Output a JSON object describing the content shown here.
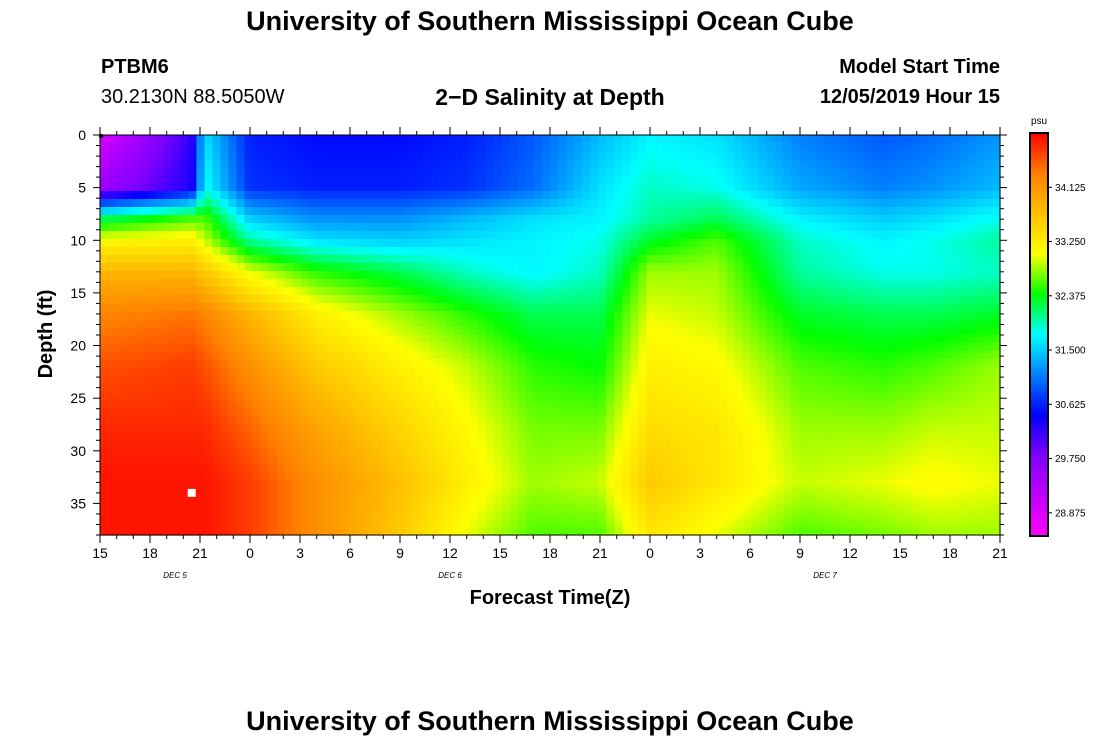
{
  "header": {
    "title": "University of Southern Mississippi Ocean Cube",
    "station": "PTBM6",
    "coordinates": "30.2130N 88.5050W",
    "subtitle": "2−D Salinity at Depth",
    "start_label": "Model Start Time",
    "start_value": "12/05/2019 Hour 15"
  },
  "footer": {
    "title": "University of Southern Mississippi Ocean Cube"
  },
  "chart_data": {
    "type": "heatmap",
    "title": "2−D Salinity at Depth",
    "xlabel": "Forecast Time(Z)",
    "ylabel": "Depth (ft)",
    "x_tick_labels": [
      "15",
      "18",
      "21",
      "0",
      "3",
      "6",
      "9",
      "12",
      "15",
      "18",
      "21",
      "0",
      "3",
      "6",
      "9",
      "12",
      "15",
      "18",
      "21"
    ],
    "x_range_hours": [
      0,
      54
    ],
    "date_labels": [
      {
        "text": "DEC 5",
        "hour": 4.5
      },
      {
        "text": "DEC 6",
        "hour": 21
      },
      {
        "text": "DEC 7",
        "hour": 43.5
      }
    ],
    "y_tick_labels": [
      "0",
      "5",
      "10",
      "15",
      "20",
      "25",
      "30",
      "35"
    ],
    "ylim": [
      0,
      38
    ],
    "y_inverted": true,
    "colorbar": {
      "unit": "psu",
      "min": 28.5,
      "max": 35.0,
      "tick_labels": [
        "34.125",
        "33.250",
        "32.375",
        "31.500",
        "30.625",
        "29.750",
        "28.875"
      ],
      "colors": [
        "#ff00ff",
        "#c000ff",
        "#8000ff",
        "#0000ff",
        "#0080ff",
        "#00ffff",
        "#00ff00",
        "#ffff00",
        "#ffc000",
        "#ff8000",
        "#ff0000"
      ]
    },
    "x_hours": [
      0,
      5.5,
      6.3,
      9,
      13,
      18,
      22,
      26,
      30,
      33,
      37,
      42,
      47,
      50,
      54
    ],
    "depths": [
      0,
      5,
      8,
      10,
      13,
      17,
      22,
      28,
      33,
      38
    ],
    "salinity": [
      [
        28.9,
        30.2,
        31.6,
        30.6,
        30.5,
        30.5,
        30.6,
        30.9,
        31.4,
        31.7,
        31.6,
        31.1,
        30.9,
        31.0,
        31.2
      ],
      [
        29.5,
        30.3,
        31.8,
        30.7,
        30.6,
        30.6,
        30.7,
        31.0,
        31.6,
        31.9,
        31.8,
        31.3,
        31.1,
        31.2,
        31.4
      ],
      [
        32.2,
        32.6,
        32.6,
        31.5,
        31.2,
        31.2,
        31.4,
        31.6,
        31.7,
        32.0,
        32.2,
        31.7,
        31.5,
        31.6,
        31.8
      ],
      [
        33.1,
        33.2,
        32.9,
        32.0,
        31.6,
        31.5,
        31.6,
        31.7,
        31.8,
        32.3,
        32.6,
        31.9,
        31.7,
        31.8,
        32.0
      ],
      [
        33.8,
        33.8,
        33.6,
        33.0,
        32.5,
        32.2,
        31.9,
        31.7,
        31.9,
        32.8,
        32.8,
        32.0,
        31.8,
        31.8,
        31.9
      ],
      [
        34.3,
        34.4,
        34.3,
        33.8,
        33.2,
        32.8,
        32.5,
        32.2,
        32.2,
        33.0,
        32.9,
        32.3,
        32.2,
        32.2,
        32.3
      ],
      [
        34.6,
        34.7,
        34.6,
        34.2,
        33.6,
        33.2,
        32.9,
        32.5,
        32.4,
        33.2,
        33.1,
        32.6,
        32.5,
        32.6,
        32.8
      ],
      [
        34.8,
        34.8,
        34.8,
        34.5,
        34.0,
        33.5,
        33.1,
        32.7,
        32.7,
        33.4,
        33.3,
        32.8,
        32.8,
        32.9,
        32.9
      ],
      [
        34.9,
        34.9,
        34.9,
        34.7,
        34.2,
        33.7,
        33.2,
        32.8,
        32.9,
        33.6,
        33.3,
        32.9,
        33.0,
        33.1,
        33.0
      ],
      [
        34.9,
        34.9,
        34.9,
        34.7,
        34.2,
        33.6,
        33.0,
        32.6,
        32.6,
        33.3,
        33.0,
        32.6,
        32.7,
        32.8,
        32.8
      ]
    ],
    "station_marker": {
      "hour": 5.5,
      "depth": 34
    }
  }
}
